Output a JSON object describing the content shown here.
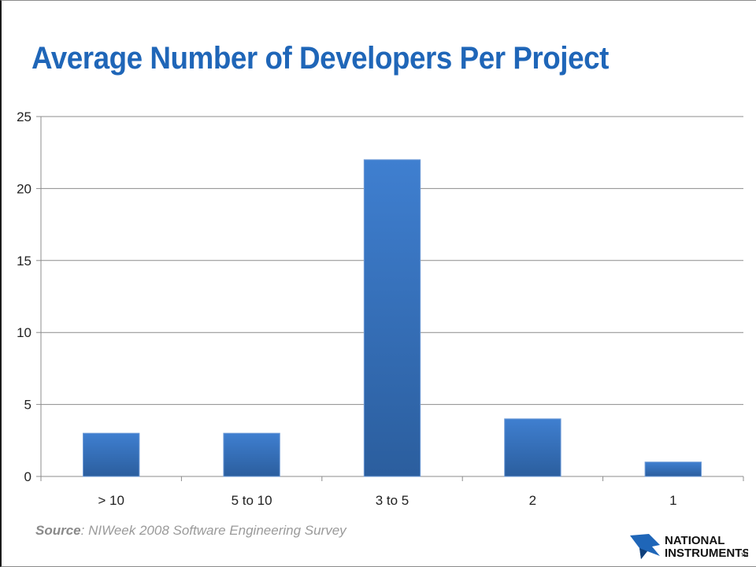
{
  "slide": {
    "title": "Average Number of Developers Per Project",
    "source_label": "Source",
    "source_text": ": NIWeek  2008 Software Engineering Survey"
  },
  "logo": {
    "line1": "NATIONAL",
    "line2": "INSTRUMENTS",
    "mark": "TM",
    "icon": "ni-eagle-logo-icon"
  },
  "colors": {
    "title": "#1f66b8",
    "bar_top": "#3f7fd0",
    "bar_bottom": "#2b5e9e",
    "grid": "#8c8c8c",
    "source": "#9a9a9a"
  },
  "chart_data": {
    "type": "bar",
    "categories": [
      "> 10",
      "5 to 10",
      "3 to 5",
      "2",
      "1"
    ],
    "values": [
      3,
      3,
      22,
      4,
      1
    ],
    "title": "Average Number of Developers Per Project",
    "xlabel": "",
    "ylabel": "",
    "ylim": [
      0,
      25
    ],
    "yticks": [
      0,
      5,
      10,
      15,
      20,
      25
    ],
    "grid": true,
    "legend": "none"
  }
}
